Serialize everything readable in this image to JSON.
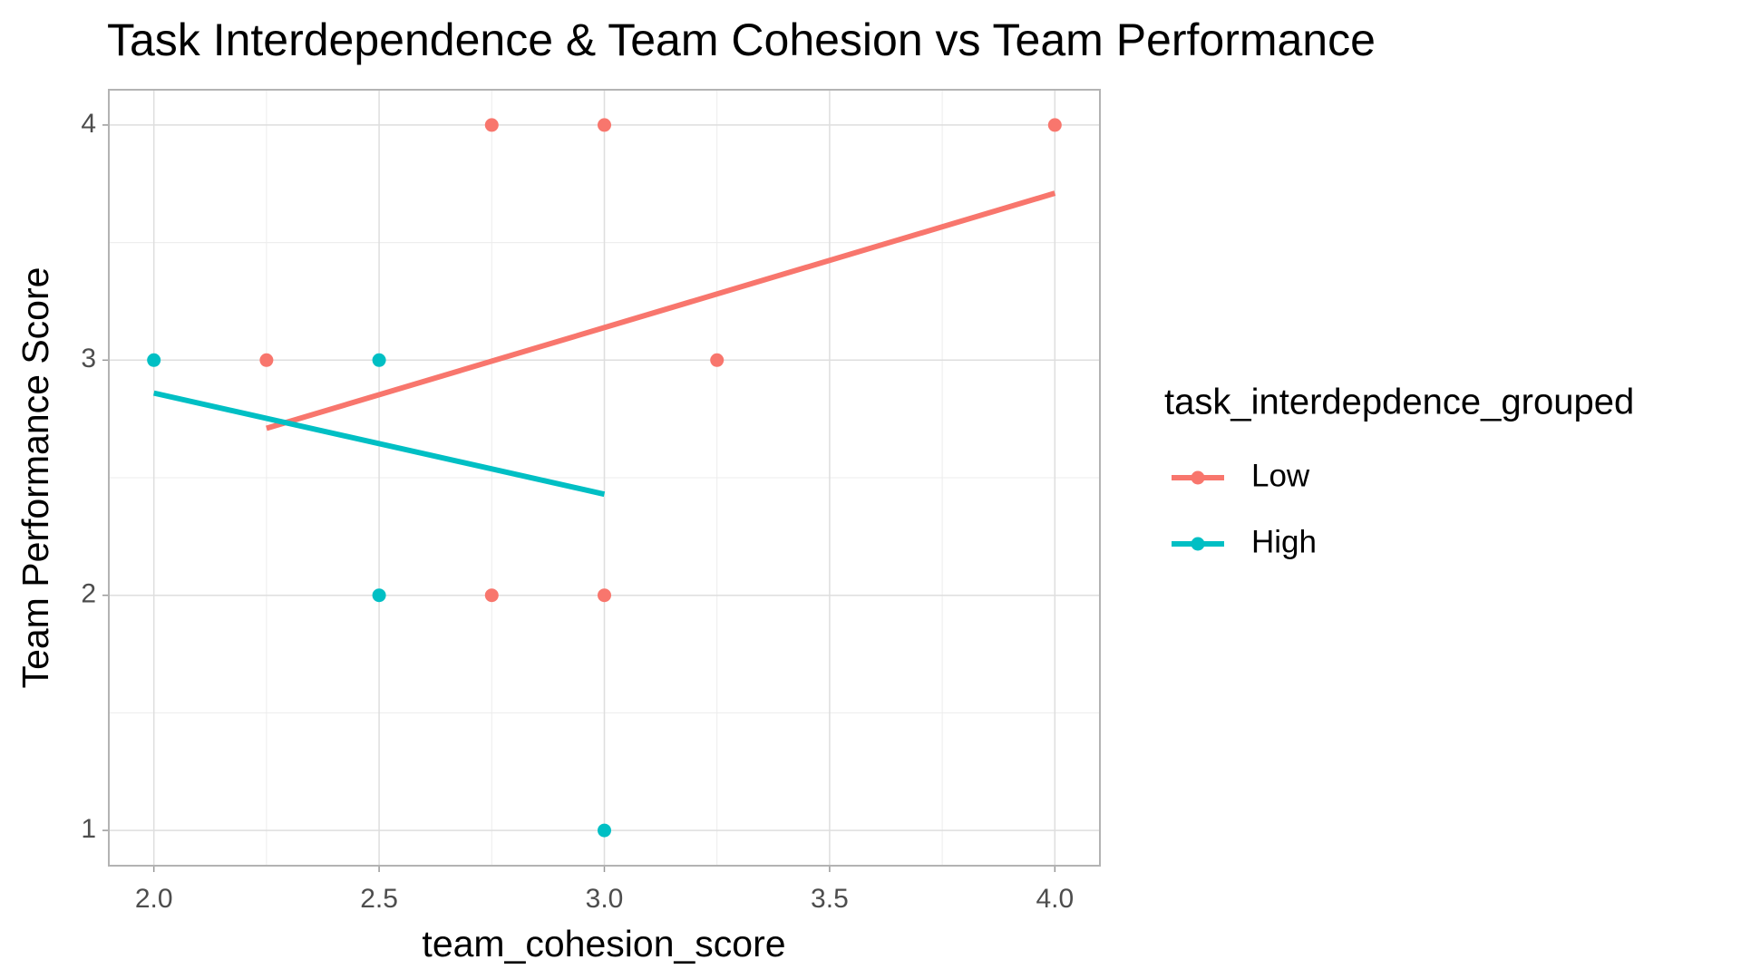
{
  "chart_data": {
    "type": "scatter",
    "title": "Task Interdependence & Team Cohesion vs Team Performance",
    "x_label": "team_cohesion_score",
    "y_label": "Team Performance Score",
    "legend_title": "task_interdepdence_grouped",
    "legend_position": "right",
    "grid": true,
    "xlim": [
      1.9,
      4.1
    ],
    "ylim": [
      0.85,
      4.15
    ],
    "xticks": [
      {
        "value": 2,
        "label": "2.0"
      },
      {
        "value": 2.5,
        "label": "2.5"
      },
      {
        "value": 3,
        "label": "3.0"
      },
      {
        "value": 3.5,
        "label": "3.5"
      },
      {
        "value": 4,
        "label": "4.0"
      }
    ],
    "yticks": [
      1,
      2,
      3,
      4
    ],
    "x_minor_grid": [
      2.25,
      2.75,
      3.25,
      3.75
    ],
    "y_minor_grid": [
      1.5,
      2.5,
      3.5
    ],
    "series": [
      {
        "name": "Low",
        "color": "#F8766D",
        "x": [
          2.25,
          2.75,
          3.0,
          4.0,
          3.25,
          2.75,
          3.0
        ],
        "values": [
          3,
          4,
          4,
          4,
          3,
          2,
          2
        ],
        "fit_x": [
          2.25,
          4.0
        ],
        "fit_values": [
          2.71,
          3.71
        ]
      },
      {
        "name": "High",
        "color": "#00BFC4",
        "x": [
          2.0,
          2.5,
          2.5,
          3.0
        ],
        "values": [
          3,
          3,
          2,
          1
        ],
        "fit_x": [
          2.0,
          3.0
        ],
        "fit_values": [
          2.86,
          2.43
        ]
      }
    ]
  }
}
